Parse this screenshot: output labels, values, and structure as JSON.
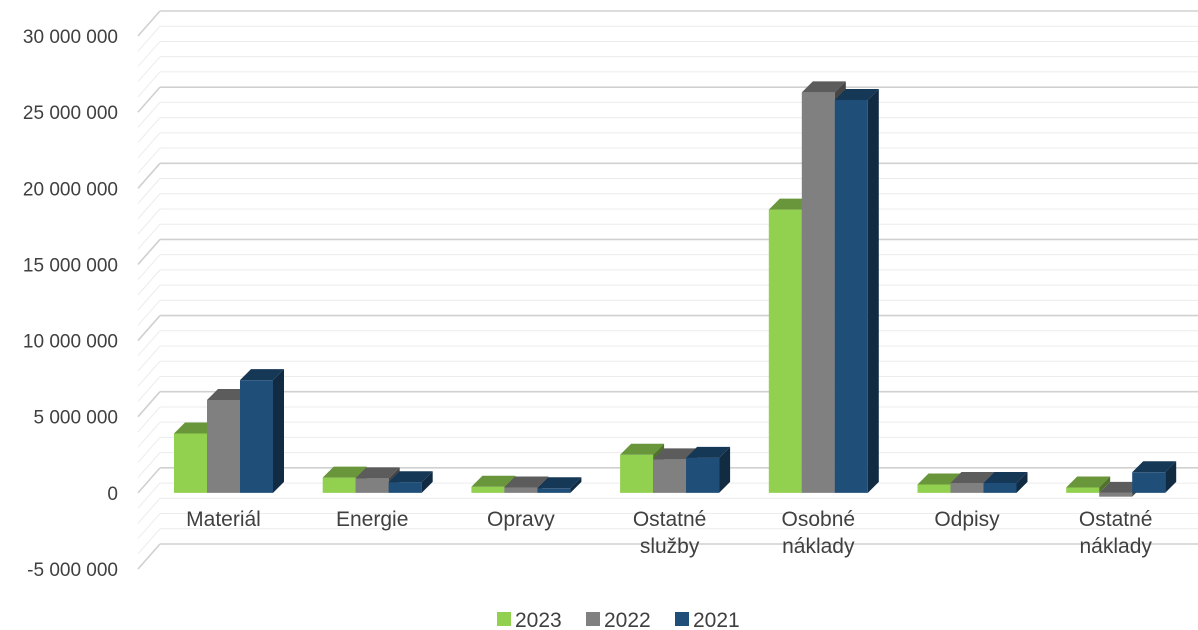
{
  "chart_data": {
    "type": "bar",
    "title": "",
    "xlabel": "",
    "ylabel": "",
    "categories": [
      [
        "Materiál"
      ],
      [
        "Energie"
      ],
      [
        "Opravy"
      ],
      [
        "Ostatné",
        "služby"
      ],
      [
        "Osobné",
        "náklady"
      ],
      [
        "Odpisy"
      ],
      [
        "Ostatné",
        "náklady"
      ]
    ],
    "series": [
      {
        "name": "2023",
        "color": "#92d050",
        "values": [
          3900000,
          1000000,
          400000,
          2500000,
          18600000,
          550000,
          350000
        ]
      },
      {
        "name": "2022",
        "color": "#808080",
        "values": [
          6100000,
          950000,
          350000,
          2200000,
          26300000,
          650000,
          -250000
        ]
      },
      {
        "name": "2021",
        "color": "#1f4e79",
        "values": [
          7400000,
          700000,
          300000,
          2300000,
          25800000,
          650000,
          1350000
        ]
      }
    ],
    "ylim": [
      -5000000,
      30000000
    ],
    "y_ticks": [
      {
        "value": 30000000,
        "label": "30 000 000"
      },
      {
        "value": 25000000,
        "label": "25 000 000"
      },
      {
        "value": 20000000,
        "label": "20 000 000"
      },
      {
        "value": 15000000,
        "label": "15 000 000"
      },
      {
        "value": 10000000,
        "label": "10 000 000"
      },
      {
        "value": 5000000,
        "label": "5 000 000"
      },
      {
        "value": 0,
        "label": "0"
      },
      {
        "value": -5000000,
        "label": "-5 000 000"
      }
    ],
    "grid": true,
    "legend_position": "bottom"
  }
}
